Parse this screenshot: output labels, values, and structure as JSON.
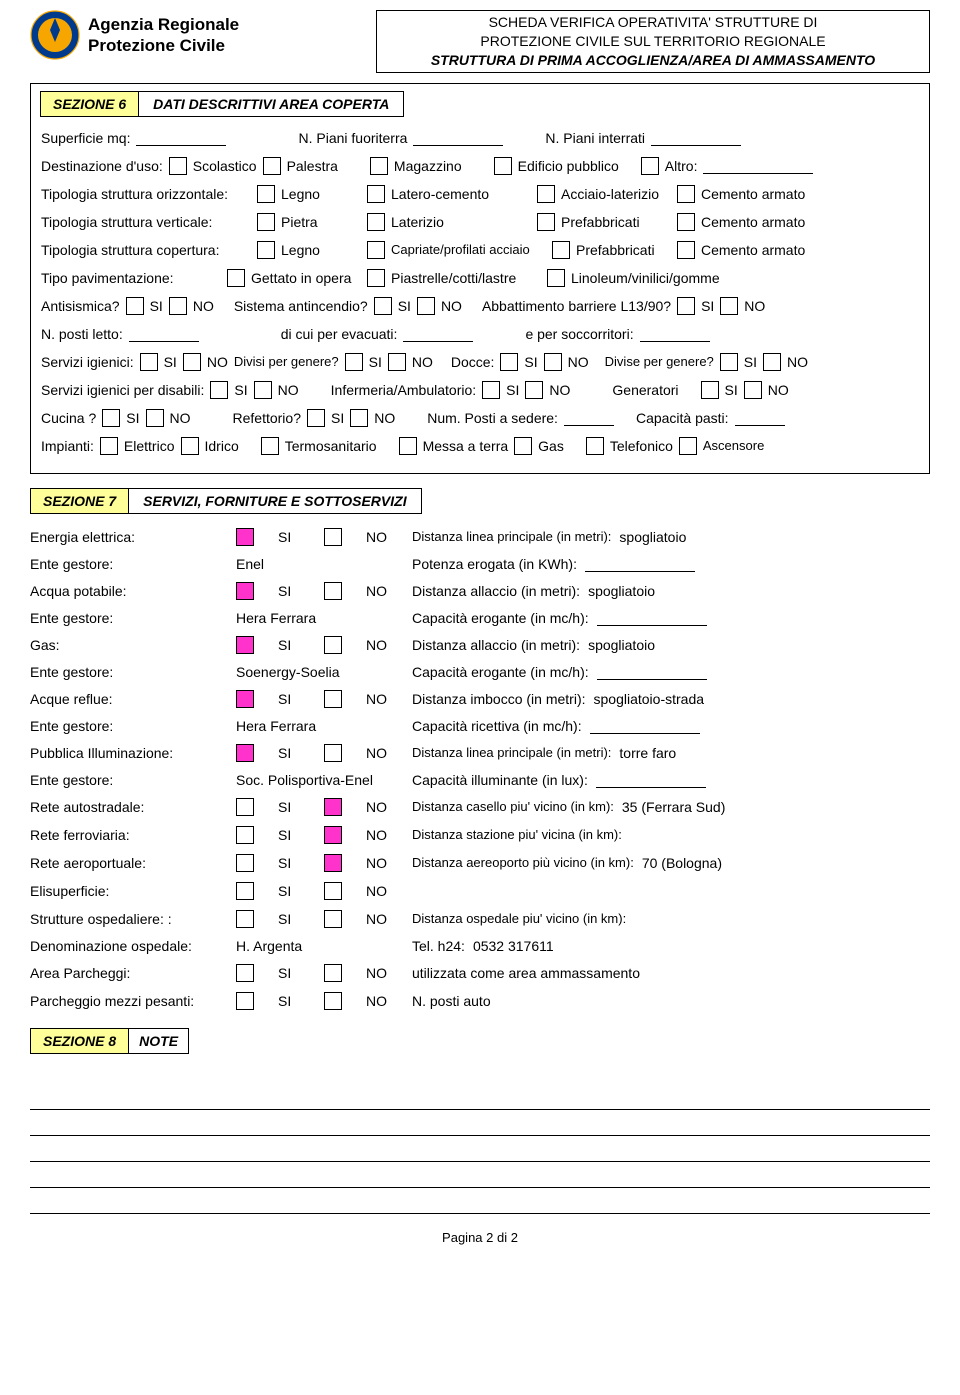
{
  "header": {
    "agency_line1": "Agenzia Regionale",
    "agency_line2": "Protezione Civile",
    "title_line1": "SCHEDA VERIFICA OPERATIVITA' STRUTTURE DI",
    "title_line2": "PROTEZIONE CIVILE SUL TERRITORIO REGIONALE",
    "title_line3": "STRUTTURA DI PRIMA ACCOGLIENZA/AREA DI AMMASSAMENTO",
    "logo_colors": {
      "outer": "#003a8c",
      "inner": "#f7a600"
    }
  },
  "section6": {
    "tag": "SEZIONE 6",
    "title": "DATI DESCRITTIVI AREA COPERTA",
    "labels": {
      "superficie": "Superficie mq:",
      "piani_fuoriterra": "N. Piani fuoriterra",
      "piani_interrati": "N. Piani interrati",
      "dest_uso": "Destinazione d'uso:",
      "dest_opts": [
        "Scolastico",
        "Palestra",
        "Magazzino",
        "Edificio pubblico",
        "Altro:"
      ],
      "tip_oriz": "Tipologia struttura orizzontale:",
      "tip_oriz_opts": [
        "Legno",
        "Latero-cemento",
        "Acciaio-laterizio",
        "Cemento armato"
      ],
      "tip_vert": "Tipologia struttura verticale:",
      "tip_vert_opts": [
        "Pietra",
        "Laterizio",
        "Prefabbricati",
        "Cemento armato"
      ],
      "tip_cop": "Tipologia struttura copertura:",
      "tip_cop_opts": [
        "Legno",
        "Capriate/profilati acciaio",
        "Prefabbricati",
        "Cemento armato"
      ],
      "tipo_pav": "Tipo pavimentazione:",
      "tipo_pav_opts": [
        "Gettato in opera",
        "Piastrelle/cotti/lastre",
        "Linoleum/vinilici/gomme"
      ],
      "antisismica": "Antisismica?",
      "si": "SI",
      "no": "NO",
      "sist_antinc": "Sistema antincendio?",
      "abbatt": "Abbattimento barriere L13/90?",
      "posti_letto": "N. posti letto:",
      "di_cui_evac": "di cui per evacuati:",
      "per_socc": "e per soccorritori:",
      "serv_ig": "Servizi igienici:",
      "divisi_gen": "Divisi per genere?",
      "docce": "Docce:",
      "divise_gen": "Divise per genere?",
      "serv_ig_dis": "Servizi igienici per disabili:",
      "inferm": "Infermeria/Ambulatorio:",
      "generatori": "Generatori",
      "cucina": "Cucina ?",
      "refettorio": "Refettorio?",
      "num_posti_sed": "Num. Posti a sedere:",
      "cap_pasti": "Capacità pasti:",
      "impianti": "Impianti:",
      "impianti_opts": [
        "Elettrico",
        "Idrico",
        "Termosanitario",
        "Messa a terra",
        "Gas",
        "Telefonico",
        "Ascensore"
      ]
    }
  },
  "section7": {
    "tag": "SEZIONE 7",
    "title": "SERVIZI, FORNITURE E SOTTOSERVIZI",
    "si": "SI",
    "no": "NO",
    "rows": [
      {
        "label": "Energia elettrica:",
        "si": true,
        "no": false,
        "rlabel": "Distanza linea principale (in metri):",
        "rval": "spogliatoio"
      },
      {
        "label": "Ente gestore:",
        "plain": "Enel",
        "rlabel": "Potenza erogata (in KWh):",
        "rblank": true
      },
      {
        "label": "Acqua potabile:",
        "si": true,
        "no": false,
        "rlabel": "Distanza allaccio (in metri):",
        "rval": "spogliatoio"
      },
      {
        "label": "Ente gestore:",
        "plain": "Hera Ferrara",
        "rlabel": "Capacità erogante (in mc/h):",
        "rblank": true
      },
      {
        "label": "Gas:",
        "si": true,
        "no": false,
        "rlabel": "Distanza allaccio (in metri):",
        "rval": "spogliatoio"
      },
      {
        "label": "Ente gestore:",
        "plain": "Soenergy-Soelia",
        "rlabel": "Capacità erogante (in mc/h):",
        "rblank": true
      },
      {
        "label": "Acque reflue:",
        "si": true,
        "no": false,
        "rlabel": "Distanza imbocco (in metri):",
        "rval": "spogliatoio-strada"
      },
      {
        "label": "Ente gestore:",
        "plain": "Hera Ferrara",
        "rlabel": "Capacità ricettiva (in mc/h):",
        "rblank": true
      },
      {
        "label": "Pubblica Illuminazione:",
        "si": true,
        "no": false,
        "rlabel": "Distanza linea principale (in metri):",
        "rval": "torre faro"
      },
      {
        "label": "Ente gestore:",
        "plain": "Soc. Polisportiva-Enel",
        "rlabel": "Capacità illuminante (in lux):",
        "rblank": true
      },
      {
        "label": "Rete autostradale:",
        "si": false,
        "no": true,
        "rlabel": "Distanza casello piu' vicino (in km):",
        "rval": "35 (Ferrara Sud)"
      },
      {
        "label": "Rete ferroviaria:",
        "si": false,
        "no": true,
        "rlabel": "Distanza stazione piu' vicina (in km):",
        "rval": ""
      },
      {
        "label": "Rete aeroportuale:",
        "si": false,
        "no": true,
        "rlabel": "Distanza aereoporto più vicino (in km):",
        "rval": "70 (Bologna)"
      },
      {
        "label": "Elisuperficie:",
        "si": false,
        "no": false,
        "rlabel": "",
        "rval": ""
      },
      {
        "label": "Strutture ospedaliere: :",
        "si": false,
        "no": false,
        "rlabel": "Distanza ospedale piu' vicino (in km):",
        "rval": ""
      },
      {
        "label": "Denominazione ospedale:",
        "plain": "H. Argenta",
        "rlabel": "Tel. h24:",
        "rval": "0532 317611"
      },
      {
        "label": "Area Parcheggi:",
        "si": false,
        "no": false,
        "rlabel": "utilizzata come area ammassamento",
        "rval": ""
      },
      {
        "label": "Parcheggio mezzi pesanti:",
        "si": false,
        "no": false,
        "rlabel": "N. posti auto",
        "rval": ""
      }
    ]
  },
  "section8": {
    "tag": "SEZIONE 8",
    "title": "NOTE",
    "lines": 5
  },
  "footer": "Pagina 2 di 2",
  "colors": {
    "section_tag_bg": "#ffff99",
    "checked_bg": "#ff33cc"
  }
}
